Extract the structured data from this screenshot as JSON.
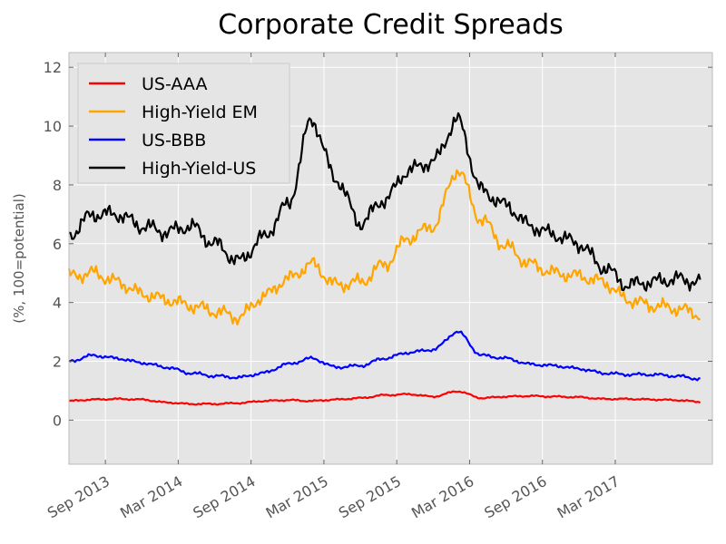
{
  "chart_data": {
    "type": "line",
    "title": "Corporate Credit Spreads",
    "xlabel": "",
    "ylabel": "(%, 100=potential)",
    "ylim": [
      -1.5,
      12.5
    ],
    "yticks": [
      "0",
      "2",
      "4",
      "6",
      "8",
      "10",
      "12"
    ],
    "ytick_values": [
      0,
      2,
      4,
      6,
      8,
      10,
      12
    ],
    "xlim": [
      "2013-06-01",
      "2017-10-31"
    ],
    "xticks": [
      "Sep 2013",
      "Mar 2014",
      "Sep 2014",
      "Mar 2015",
      "Sep 2015",
      "Mar 2016",
      "Sep 2016",
      "Mar 2017"
    ],
    "xtick_dates": [
      "2013-09-01",
      "2014-03-01",
      "2014-09-01",
      "2015-03-01",
      "2015-09-01",
      "2016-03-01",
      "2016-09-01",
      "2017-03-01"
    ],
    "grid": true,
    "legend_position": "top-left",
    "x": [
      "2013-06",
      "2013-08",
      "2013-10",
      "2013-12",
      "2014-02",
      "2014-04",
      "2014-06",
      "2014-08",
      "2014-10",
      "2014-12",
      "2015-02",
      "2015-04",
      "2015-06",
      "2015-08",
      "2015-10",
      "2015-12",
      "2016-02",
      "2016-04",
      "2016-06",
      "2016-08",
      "2016-10",
      "2016-12",
      "2017-02",
      "2017-04",
      "2017-06",
      "2017-08",
      "2017-10"
    ],
    "series": [
      {
        "name": "US-AAA",
        "color": "#ff0000",
        "values": [
          0.65,
          0.7,
          0.72,
          0.7,
          0.6,
          0.55,
          0.55,
          0.58,
          0.65,
          0.68,
          0.65,
          0.7,
          0.75,
          0.85,
          0.88,
          0.8,
          0.98,
          0.75,
          0.8,
          0.82,
          0.8,
          0.78,
          0.72,
          0.72,
          0.7,
          0.68,
          0.62
        ]
      },
      {
        "name": "High-Yield EM",
        "color": "#ffa500",
        "values": [
          4.9,
          5.0,
          4.7,
          4.3,
          4.1,
          3.9,
          3.7,
          3.5,
          4.2,
          4.8,
          5.3,
          4.6,
          4.7,
          5.3,
          6.2,
          6.6,
          8.5,
          6.8,
          5.9,
          5.3,
          5.0,
          4.9,
          4.7,
          4.1,
          3.9,
          3.8,
          3.6
        ]
      },
      {
        "name": "US-BBB",
        "color": "#0000ff",
        "values": [
          2.0,
          2.2,
          2.1,
          1.95,
          1.8,
          1.6,
          1.5,
          1.45,
          1.6,
          1.9,
          2.1,
          1.8,
          1.85,
          2.1,
          2.3,
          2.4,
          3.0,
          2.2,
          2.1,
          1.9,
          1.85,
          1.75,
          1.6,
          1.55,
          1.55,
          1.5,
          1.4
        ]
      },
      {
        "name": "High-Yield-US",
        "color": "#000000",
        "values": [
          6.3,
          7.0,
          7.0,
          6.6,
          6.4,
          6.6,
          6.0,
          5.4,
          6.2,
          7.3,
          10.2,
          8.2,
          6.7,
          7.5,
          8.5,
          8.8,
          10.2,
          7.8,
          7.3,
          6.6,
          6.3,
          6.0,
          5.2,
          4.6,
          4.7,
          4.8,
          4.7
        ]
      }
    ]
  }
}
